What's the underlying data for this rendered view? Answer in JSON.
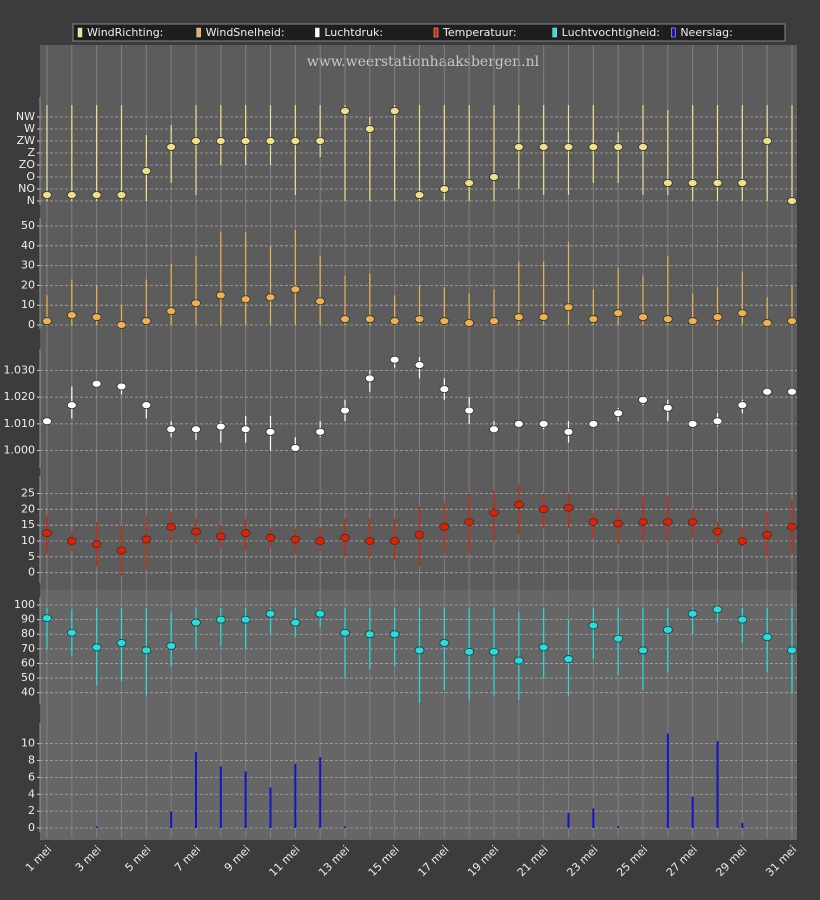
{
  "watermark": "www.weerstationhaaksbergen.nl",
  "chart_data": [
    {
      "type": "range",
      "name": "WindRichting:",
      "color": "#f0e08a",
      "values": [
        22.5,
        22.5,
        22.5,
        22.5,
        112.5,
        202.5,
        225,
        225,
        225,
        225,
        225,
        225,
        337.5,
        270,
        337.5,
        22.5,
        45,
        67.5,
        90,
        202.5,
        202.5,
        202.5,
        202.5,
        202.5,
        202.5,
        67.5,
        67.5,
        67.5,
        67.5,
        225,
        0
      ],
      "low": [
        0,
        0,
        0,
        0,
        0,
        67.5,
        22.5,
        135,
        135,
        135,
        22.5,
        165,
        0,
        0,
        0,
        0,
        0,
        0,
        0,
        45,
        22.5,
        22.5,
        67.5,
        67.5,
        22.5,
        22.5,
        0,
        0,
        0,
        0,
        0
      ],
      "high": [
        360,
        360,
        360,
        360,
        247.5,
        285,
        360,
        360,
        360,
        360,
        360,
        360,
        360,
        315,
        360,
        360,
        360,
        360,
        360,
        360,
        360,
        360,
        360,
        258,
        360,
        341,
        360,
        360,
        360,
        360,
        360
      ],
      "ylim": [
        0,
        360
      ],
      "yticks": [
        {
          "value": 0,
          "label": "N"
        },
        {
          "value": 45,
          "label": "NO"
        },
        {
          "value": 90,
          "label": "O"
        },
        {
          "value": 135,
          "label": "ZO"
        },
        {
          "value": 180,
          "label": "Z"
        },
        {
          "value": 225,
          "label": "ZW"
        },
        {
          "value": 270,
          "label": "W"
        },
        {
          "value": 315,
          "label": "NW"
        }
      ]
    },
    {
      "type": "range",
      "name": "WindSnelheid:",
      "color": "#f0b050",
      "values": [
        2,
        5,
        4,
        0,
        2,
        7,
        11,
        15,
        13,
        14,
        18,
        12,
        3,
        3,
        2,
        3,
        2,
        1,
        2,
        4,
        4,
        9,
        3,
        6,
        4,
        3,
        2,
        4,
        6,
        1,
        2
      ],
      "high": [
        15,
        23,
        20,
        10,
        23,
        31,
        35,
        47,
        47,
        40,
        48,
        35,
        25,
        26,
        15,
        20,
        19,
        16,
        18,
        32,
        32,
        42,
        18,
        29,
        25,
        35,
        16,
        19,
        27,
        14,
        20
      ],
      "ylim": [
        0,
        50
      ],
      "yticks": [
        0,
        10,
        20,
        30,
        40,
        50
      ]
    },
    {
      "type": "range",
      "name": "Luchtdruk:",
      "color": "#ffffff",
      "values": [
        1.011,
        1.017,
        1.025,
        1.024,
        1.017,
        1.008,
        1.008,
        1.009,
        1.008,
        1.007,
        1.001,
        1.007,
        1.015,
        1.027,
        1.034,
        1.032,
        1.023,
        1.015,
        1.008,
        1.01,
        1.01,
        1.007,
        1.01,
        1.014,
        1.019,
        1.016,
        1.01,
        1.011,
        1.017,
        1.022,
        1.022
      ],
      "low": [
        1.01,
        1.012,
        1.024,
        1.021,
        1.012,
        1.005,
        1.004,
        1.003,
        1.003,
        1.0,
        1.0,
        1.005,
        1.011,
        1.022,
        1.031,
        1.027,
        1.019,
        1.01,
        1.007,
        1.009,
        1.008,
        1.003,
        1.009,
        1.011,
        1.017,
        1.011,
        1.009,
        1.009,
        1.014,
        1.021,
        1.021
      ],
      "high": [
        1.011,
        1.024,
        1.026,
        1.025,
        1.018,
        1.011,
        1.009,
        1.011,
        1.013,
        1.013,
        1.005,
        1.011,
        1.019,
        1.03,
        1.035,
        1.035,
        1.027,
        1.02,
        1.011,
        1.011,
        1.011,
        1.011,
        1.011,
        1.016,
        1.02,
        1.019,
        1.011,
        1.014,
        1.019,
        1.023,
        1.023
      ],
      "ylim": [
        0.995,
        1.035
      ],
      "yticks": [
        {
          "value": 1.0,
          "label": "1.000"
        },
        {
          "value": 1.01,
          "label": "1.010"
        },
        {
          "value": 1.02,
          "label": "1.020"
        },
        {
          "value": 1.03,
          "label": "1.030"
        }
      ]
    },
    {
      "type": "range",
      "name": "Temperatuur:",
      "color": "#e02000",
      "values": [
        12.5,
        10,
        9,
        7,
        10.5,
        14.5,
        13,
        11.5,
        12.5,
        11,
        10.5,
        10,
        11,
        10,
        10,
        12,
        14.5,
        16,
        19,
        21.5,
        20,
        20.5,
        16,
        15.5,
        16,
        16,
        16,
        13,
        10,
        12,
        14.5
      ],
      "low": [
        6,
        7,
        2,
        -1,
        1,
        10,
        9,
        8,
        7,
        8,
        6,
        7,
        5,
        5,
        4,
        2,
        6,
        6,
        10,
        12,
        14,
        14,
        11,
        9,
        10,
        10,
        11,
        9,
        8,
        5,
        6
      ],
      "high": [
        18,
        13,
        16,
        15,
        18,
        19,
        17,
        15,
        17,
        14,
        14,
        14,
        17,
        17,
        17,
        21,
        22,
        25,
        26,
        28,
        25,
        25,
        19,
        20,
        24,
        24,
        20,
        16,
        14,
        19,
        23
      ],
      "ylim": [
        -2,
        28
      ],
      "yticks": [
        0,
        5,
        10,
        15,
        20,
        25
      ]
    },
    {
      "type": "range",
      "name": "Luchtvochtigheid:",
      "color": "#20e0e0",
      "values": [
        91,
        81,
        71,
        74,
        69,
        72,
        88,
        90,
        90,
        94,
        88,
        94,
        81,
        80,
        80,
        69,
        74,
        68,
        68,
        62,
        71,
        63,
        86,
        77,
        69,
        83,
        94,
        97,
        90,
        78,
        69
      ],
      "low": [
        70,
        65,
        45,
        48,
        38,
        58,
        70,
        72,
        70,
        80,
        78,
        85,
        50,
        56,
        58,
        33,
        42,
        35,
        38,
        35,
        50,
        38,
        63,
        52,
        42,
        54,
        80,
        88,
        74,
        54,
        40
      ],
      "high": [
        98,
        97,
        98,
        98,
        98,
        95,
        98,
        98,
        98,
        98,
        98,
        98,
        98,
        98,
        98,
        98,
        98,
        98,
        98,
        95,
        98,
        90,
        98,
        98,
        98,
        98,
        98,
        98,
        98,
        98,
        98
      ],
      "ylim": [
        35,
        100
      ],
      "yticks": [
        40,
        50,
        60,
        70,
        80,
        90,
        100
      ]
    },
    {
      "type": "bar",
      "name": "Neerslag:",
      "color": "#1414c8",
      "categories": [
        "1 mei",
        null,
        "3 mei",
        null,
        "5 mei",
        null,
        "7 mei",
        null,
        "9 mei",
        null,
        "11 mei",
        null,
        "13 mei",
        null,
        "15 mei",
        null,
        "17 mei",
        null,
        "19 mei",
        null,
        "21 mei",
        null,
        "23 mei",
        null,
        "25 mei",
        null,
        "27 mei",
        null,
        "29 mei",
        null,
        "31 mei"
      ],
      "values": [
        0,
        0,
        0.2,
        0,
        0,
        2,
        9,
        7.3,
        6.7,
        4.8,
        7.6,
        8.4,
        0.2,
        0,
        0,
        0,
        0,
        0,
        0,
        0,
        0,
        1.8,
        2.3,
        0.2,
        0,
        11.2,
        3.7,
        10.3,
        0.6,
        0,
        0
      ],
      "ylim": [
        0,
        11.5
      ],
      "yticks": [
        0,
        2,
        4,
        6,
        8,
        10
      ]
    }
  ]
}
